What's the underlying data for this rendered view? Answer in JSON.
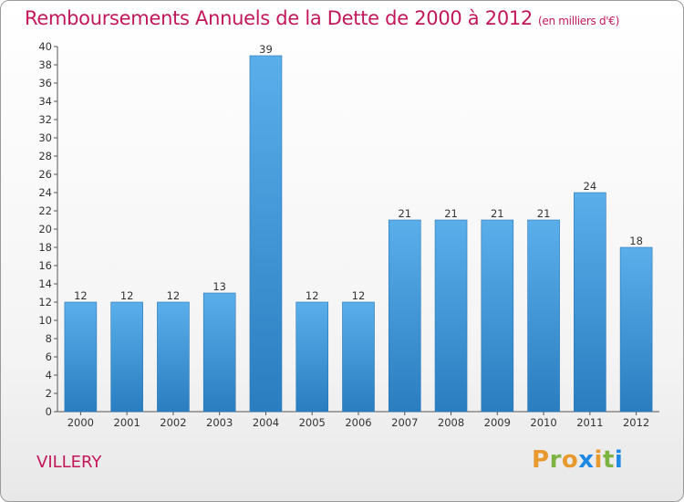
{
  "header": {
    "title": "Remboursements Annuels de la Dette de 2000 à 2012",
    "subtitle": "(en milliers d'€)"
  },
  "footer": {
    "place": "VILLERY",
    "logo": "Proxiti"
  },
  "colors": {
    "title": "#c2185b",
    "bar_light": "#5aaeea",
    "bar_dark": "#2a7ec0",
    "logo_letters": [
      "#e89a2e",
      "#7cb342",
      "#e89a2e",
      "#1e88e5",
      "#e89a2e",
      "#7cb342",
      "#1e88e5"
    ]
  },
  "chart_data": {
    "type": "bar",
    "title": "Remboursements Annuels de la Dette de 2000 à 2012",
    "subtitle": "(en milliers d'€)",
    "categories": [
      "2000",
      "2001",
      "2002",
      "2003",
      "2004",
      "2005",
      "2006",
      "2007",
      "2008",
      "2009",
      "2010",
      "2011",
      "2012"
    ],
    "values": [
      12,
      12,
      12,
      13,
      39,
      12,
      12,
      21,
      21,
      21,
      21,
      24,
      18
    ],
    "ylim": [
      0,
      40
    ],
    "ytick_step": 2,
    "grid": false
  }
}
